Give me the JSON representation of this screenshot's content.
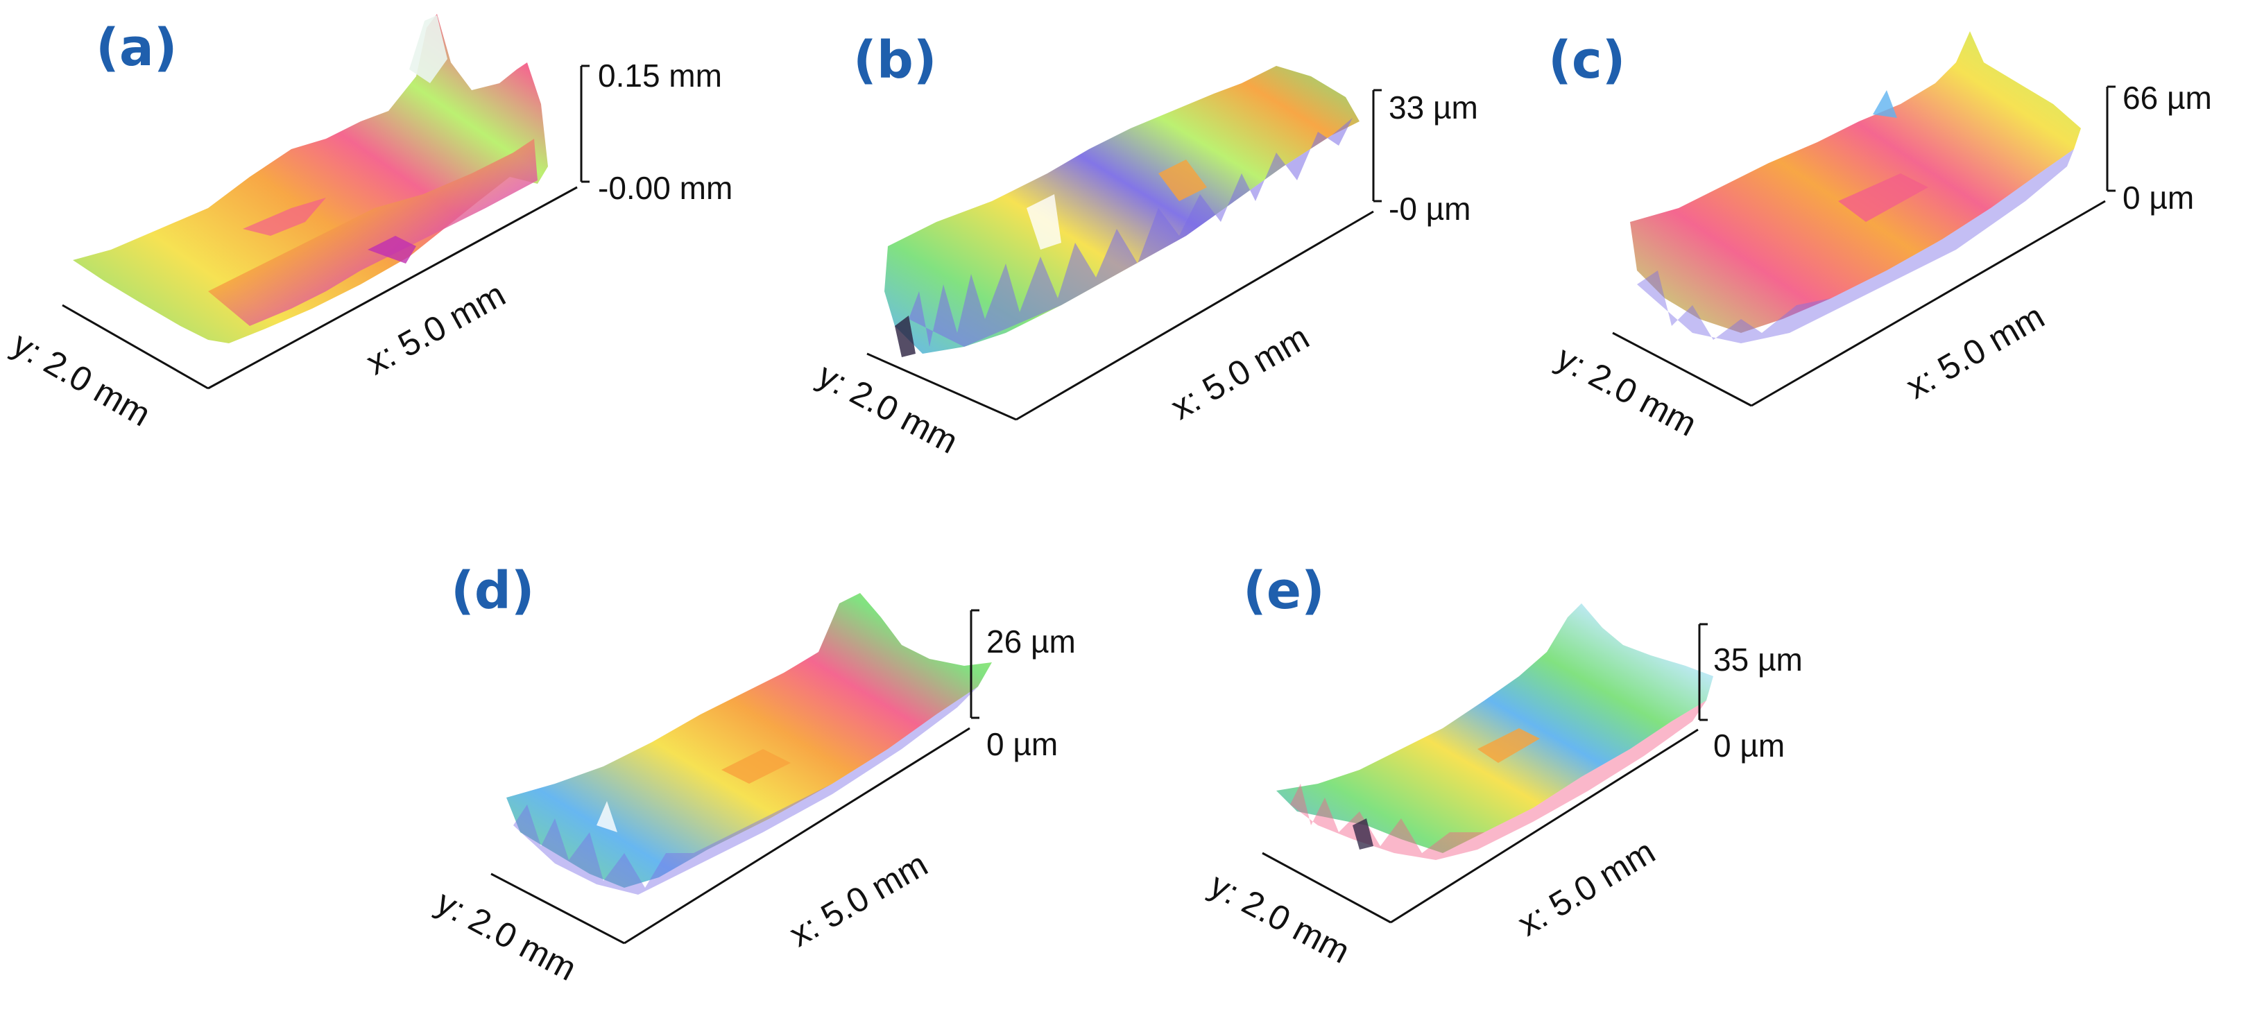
{
  "panels": [
    {
      "id": "a",
      "letter": "(a)",
      "z_top": "0.15 mm",
      "z_bottom": "-0.00 mm",
      "x_axis": "x: 5.0 mm",
      "y_axis": "y: 2.0 mm",
      "colormap": "rainbow-pastel"
    },
    {
      "id": "b",
      "letter": "(b)",
      "z_top": "33 µm",
      "z_bottom": "-0 µm",
      "x_axis": "x: 5.0 mm",
      "y_axis": "y: 2.0 mm",
      "colormap": "rainbow-pastel"
    },
    {
      "id": "c",
      "letter": "(c)",
      "z_top": "66 µm",
      "z_bottom": "0 µm",
      "x_axis": "x: 5.0 mm",
      "y_axis": "y: 2.0 mm",
      "colormap": "rainbow-pastel"
    },
    {
      "id": "d",
      "letter": "(d)",
      "z_top": "26 µm",
      "z_bottom": "0 µm",
      "x_axis": "x: 5.0 mm",
      "y_axis": "y: 2.0 mm",
      "colormap": "rainbow-pastel"
    },
    {
      "id": "e",
      "letter": "(e)",
      "z_top": "35 µm",
      "z_bottom": "0 µm",
      "x_axis": "x: 5.0 mm",
      "y_axis": "y: 2.0 mm",
      "colormap": "rainbow-pastel"
    }
  ],
  "colors": {
    "panel_letter": "#1f5fad",
    "axis_text": "#111111",
    "axis_line": "#111111",
    "surface_palette": [
      "#7be07a",
      "#b8f06a",
      "#f6e04a",
      "#f7a23c",
      "#f45f8a",
      "#d63bc9",
      "#7c6ee6",
      "#5fb3f0",
      "#b9e8f2"
    ]
  }
}
